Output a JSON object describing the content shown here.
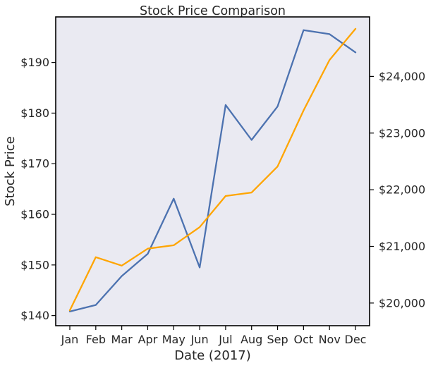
{
  "chart_data": {
    "type": "line",
    "title": "Stock Price Comparison",
    "xlabel": "Date (2017)",
    "ylabel": "Stock Price",
    "ylabel_right": "",
    "categories": [
      "Jan",
      "Feb",
      "Mar",
      "Apr",
      "May",
      "Jun",
      "Jul",
      "Aug",
      "Sep",
      "Oct",
      "Nov",
      "Dec"
    ],
    "y_left": {
      "ticks": [
        140,
        150,
        160,
        170,
        180,
        190
      ],
      "tick_labels": [
        "$140",
        "$150",
        "$160",
        "$170",
        "$180",
        "$190"
      ],
      "ylim": [
        138.0,
        199.0
      ]
    },
    "y_right": {
      "ticks": [
        20000,
        21000,
        22000,
        23000,
        24000
      ],
      "tick_labels": [
        "$20,000",
        "$21,000",
        "$22,000",
        "$23,000",
        "$24,000"
      ],
      "ylim": [
        19600,
        25050
      ]
    },
    "series": [
      {
        "axis": "left",
        "color": "#4c72b0",
        "values": [
          140.8,
          142.1,
          147.8,
          152.2,
          163.1,
          149.5,
          181.6,
          174.7,
          181.3,
          196.4,
          195.6,
          192.0
        ]
      },
      {
        "axis": "right",
        "color": "#ffa500",
        "values": [
          19870,
          20810,
          20660,
          20960,
          21020,
          21340,
          21890,
          21950,
          22410,
          23400,
          24290,
          24840
        ]
      }
    ],
    "grid": false,
    "background": "#eaeaf2",
    "legend": "none"
  }
}
